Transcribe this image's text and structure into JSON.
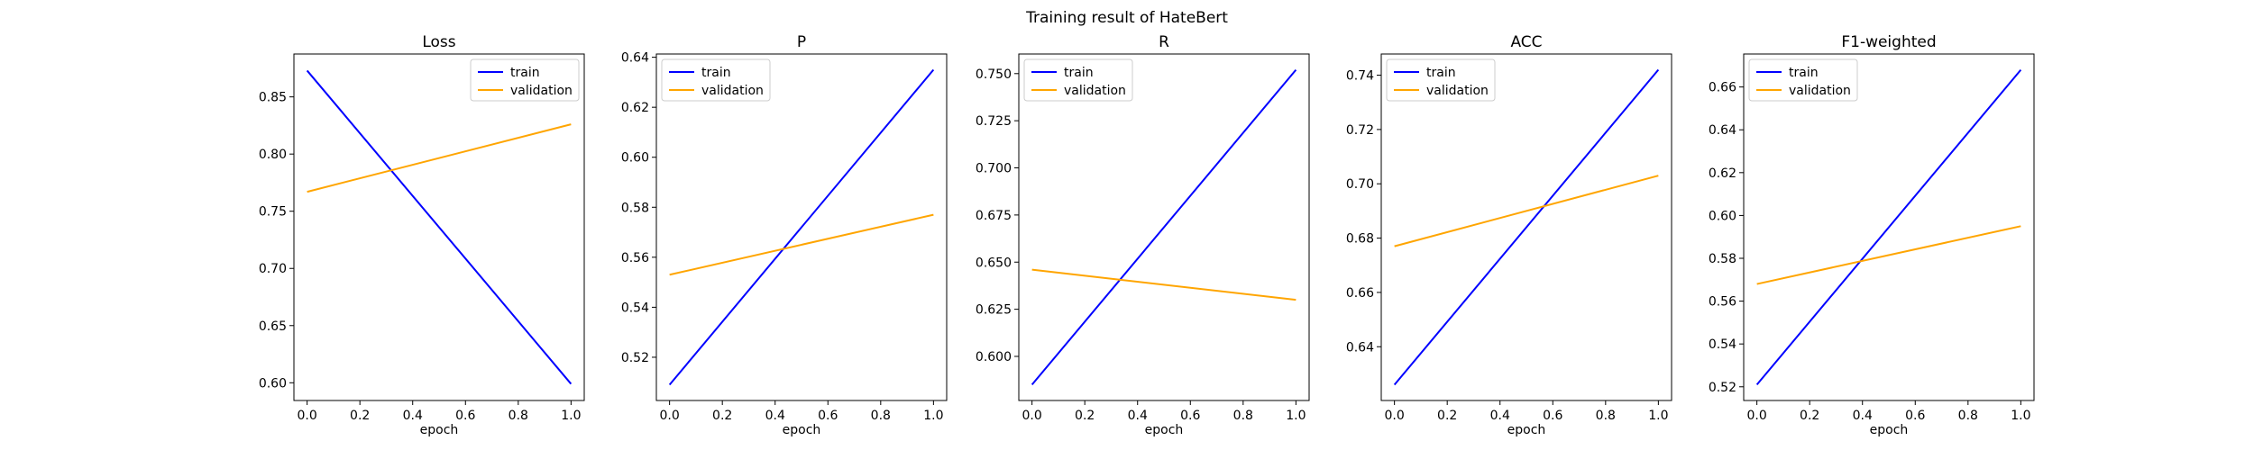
{
  "figure": {
    "title": "Training result of HateBert"
  },
  "chart_data": [
    {
      "type": "line",
      "title": "Loss",
      "xlabel": "epoch",
      "ylabel": "",
      "x": [
        0.0,
        1.0
      ],
      "xticks": [
        "0.0",
        "0.2",
        "0.4",
        "0.6",
        "0.8",
        "1.0"
      ],
      "xtick_values": [
        0.0,
        0.2,
        0.4,
        0.6,
        0.8,
        1.0
      ],
      "yticks": [
        "0.60",
        "0.65",
        "0.70",
        "0.75",
        "0.80",
        "0.85"
      ],
      "ytick_values": [
        0.6,
        0.65,
        0.7,
        0.75,
        0.8,
        0.85
      ],
      "ylim": [
        0.5845,
        0.8875
      ],
      "legend": "upper right",
      "series": [
        {
          "name": "train",
          "values": [
            0.873,
            0.599
          ],
          "color": "#0000ff"
        },
        {
          "name": "validation",
          "values": [
            0.767,
            0.826
          ],
          "color": "#ffa500"
        }
      ]
    },
    {
      "type": "line",
      "title": "P",
      "xlabel": "epoch",
      "ylabel": "",
      "x": [
        0.0,
        1.0
      ],
      "xticks": [
        "0.0",
        "0.2",
        "0.4",
        "0.6",
        "0.8",
        "1.0"
      ],
      "xtick_values": [
        0.0,
        0.2,
        0.4,
        0.6,
        0.8,
        1.0
      ],
      "yticks": [
        "0.52",
        "0.54",
        "0.56",
        "0.58",
        "0.60",
        "0.62",
        "0.64"
      ],
      "ytick_values": [
        0.52,
        0.54,
        0.56,
        0.58,
        0.6,
        0.62,
        0.64
      ],
      "ylim": [
        0.5027,
        0.6413
      ],
      "legend": "upper left",
      "series": [
        {
          "name": "train",
          "values": [
            0.509,
            0.635
          ],
          "color": "#0000ff"
        },
        {
          "name": "validation",
          "values": [
            0.553,
            0.577
          ],
          "color": "#ffa500"
        }
      ]
    },
    {
      "type": "line",
      "title": "R",
      "xlabel": "epoch",
      "ylabel": "",
      "x": [
        0.0,
        1.0
      ],
      "xticks": [
        "0.0",
        "0.2",
        "0.4",
        "0.6",
        "0.8",
        "1.0"
      ],
      "xtick_values": [
        0.0,
        0.2,
        0.4,
        0.6,
        0.8,
        1.0
      ],
      "yticks": [
        "0.600",
        "0.625",
        "0.650",
        "0.675",
        "0.700",
        "0.725",
        "0.750"
      ],
      "ytick_values": [
        0.6,
        0.625,
        0.65,
        0.675,
        0.7,
        0.725,
        0.75
      ],
      "ylim": [
        0.5766,
        0.7604
      ],
      "legend": "upper left",
      "series": [
        {
          "name": "train",
          "values": [
            0.585,
            0.752
          ],
          "color": "#0000ff"
        },
        {
          "name": "validation",
          "values": [
            0.646,
            0.63
          ],
          "color": "#ffa500"
        }
      ]
    },
    {
      "type": "line",
      "title": "ACC",
      "xlabel": "epoch",
      "ylabel": "",
      "x": [
        0.0,
        1.0
      ],
      "xticks": [
        "0.0",
        "0.2",
        "0.4",
        "0.6",
        "0.8",
        "1.0"
      ],
      "xtick_values": [
        0.0,
        0.2,
        0.4,
        0.6,
        0.8,
        1.0
      ],
      "yticks": [
        "0.64",
        "0.66",
        "0.68",
        "0.70",
        "0.72",
        "0.74"
      ],
      "ytick_values": [
        0.64,
        0.66,
        0.68,
        0.7,
        0.72,
        0.74
      ],
      "ylim": [
        0.6202,
        0.7478
      ],
      "legend": "upper left",
      "series": [
        {
          "name": "train",
          "values": [
            0.626,
            0.742
          ],
          "color": "#0000ff"
        },
        {
          "name": "validation",
          "values": [
            0.677,
            0.703
          ],
          "color": "#ffa500"
        }
      ]
    },
    {
      "type": "line",
      "title": "F1-weighted",
      "xlabel": "epoch",
      "ylabel": "",
      "x": [
        0.0,
        1.0
      ],
      "xticks": [
        "0.0",
        "0.2",
        "0.4",
        "0.6",
        "0.8",
        "1.0"
      ],
      "xtick_values": [
        0.0,
        0.2,
        0.4,
        0.6,
        0.8,
        1.0
      ],
      "yticks": [
        "0.52",
        "0.54",
        "0.56",
        "0.58",
        "0.60",
        "0.62",
        "0.64",
        "0.66"
      ],
      "ytick_values": [
        0.52,
        0.54,
        0.56,
        0.58,
        0.6,
        0.62,
        0.64,
        0.66
      ],
      "ylim": [
        0.5136,
        0.6754
      ],
      "legend": "upper left",
      "series": [
        {
          "name": "train",
          "values": [
            0.521,
            0.668
          ],
          "color": "#0000ff"
        },
        {
          "name": "validation",
          "values": [
            0.568,
            0.595
          ],
          "color": "#ffa500"
        }
      ]
    }
  ]
}
